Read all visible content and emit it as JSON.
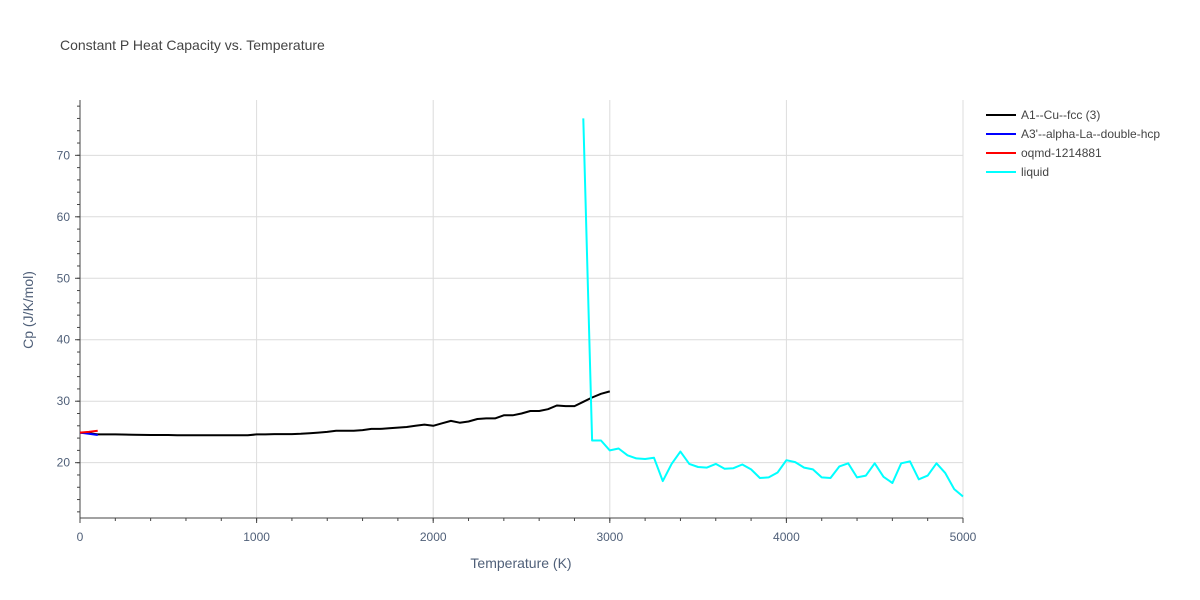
{
  "chart_data": {
    "type": "line",
    "title": "Constant P Heat Capacity vs. Temperature",
    "xlabel": "Temperature (K)",
    "ylabel": "Cp (J/K/mol)",
    "xlim": [
      0,
      5000
    ],
    "ylim": [
      11,
      79
    ],
    "x_ticks": [
      0,
      1000,
      2000,
      3000,
      4000,
      5000
    ],
    "y_ticks": [
      20,
      30,
      40,
      50,
      60,
      70
    ],
    "grid": true,
    "legend_position": "top-right",
    "series": [
      {
        "name": "A1--Cu--fcc (3)",
        "color": "#000000",
        "x": [
          0,
          50,
          100,
          200,
          300,
          400,
          500,
          550,
          600,
          700,
          800,
          900,
          950,
          1000,
          1050,
          1100,
          1150,
          1200,
          1250,
          1300,
          1350,
          1400,
          1450,
          1500,
          1550,
          1600,
          1650,
          1700,
          1750,
          1800,
          1850,
          1900,
          1950,
          2000,
          2050,
          2100,
          2150,
          2200,
          2250,
          2300,
          2350,
          2400,
          2450,
          2500,
          2550,
          2600,
          2650,
          2700,
          2750,
          2800,
          2850,
          2900,
          2950,
          3000
        ],
        "y": [
          24.9,
          24.8,
          24.6,
          24.6,
          24.55,
          24.5,
          24.5,
          24.45,
          24.45,
          24.45,
          24.45,
          24.45,
          24.45,
          24.6,
          24.6,
          24.65,
          24.65,
          24.65,
          24.7,
          24.8,
          24.9,
          25.0,
          25.2,
          25.2,
          25.2,
          25.3,
          25.5,
          25.5,
          25.6,
          25.7,
          25.8,
          26.0,
          26.2,
          26.0,
          26.4,
          26.8,
          26.5,
          26.7,
          27.1,
          27.2,
          27.2,
          27.7,
          27.7,
          28.0,
          28.4,
          28.4,
          28.7,
          29.3,
          29.2,
          29.2,
          29.9,
          30.6,
          31.2,
          31.6
        ]
      },
      {
        "name": "A3'--alpha-La--double-hcp",
        "color": "#0000ff",
        "x": [
          0,
          50,
          100
        ],
        "y": [
          24.9,
          24.7,
          24.5
        ]
      },
      {
        "name": "oqmd-1214881",
        "color": "#ff0000",
        "x": [
          0,
          50,
          100
        ],
        "y": [
          24.9,
          25.0,
          25.2
        ]
      },
      {
        "name": "liquid",
        "color": "#00ffff",
        "x": [
          2850,
          2900,
          2950,
          3000,
          3050,
          3100,
          3150,
          3200,
          3250,
          3300,
          3350,
          3400,
          3450,
          3500,
          3550,
          3600,
          3650,
          3700,
          3750,
          3800,
          3850,
          3900,
          3950,
          4000,
          4050,
          4100,
          4150,
          4200,
          4250,
          4300,
          4350,
          4400,
          4450,
          4500,
          4550,
          4600,
          4650,
          4700,
          4750,
          4800,
          4850,
          4900,
          4950,
          5000
        ],
        "y": [
          76,
          23.6,
          23.6,
          22.0,
          22.3,
          21.2,
          20.7,
          20.6,
          20.8,
          17.0,
          19.8,
          21.8,
          19.8,
          19.3,
          19.2,
          19.8,
          19.0,
          19.1,
          19.7,
          18.9,
          17.5,
          17.6,
          18.4,
          20.4,
          20.1,
          19.2,
          18.9,
          17.6,
          17.5,
          19.4,
          19.9,
          17.6,
          17.9,
          19.9,
          17.7,
          16.7,
          19.9,
          20.2,
          17.3,
          17.9,
          19.9,
          18.3,
          15.7,
          14.5
        ]
      }
    ]
  }
}
